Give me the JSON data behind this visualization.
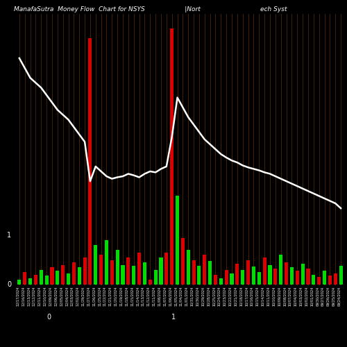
{
  "title": "ManafaSutra  Money Flow  Chart for NSYS                    |Nort                              ech Syst",
  "background_color": "#000000",
  "bar_color_positive": "#00dd00",
  "bar_color_negative": "#dd0000",
  "line_color": "#ffffff",
  "n_bars": 60,
  "bar_values": [
    0.1,
    0.25,
    0.12,
    0.2,
    0.3,
    0.18,
    0.35,
    0.28,
    0.4,
    0.22,
    0.45,
    0.35,
    0.55,
    5.0,
    0.8,
    0.6,
    0.9,
    0.5,
    0.7,
    0.4,
    0.55,
    0.38,
    0.65,
    0.45,
    0.1,
    0.3,
    0.55,
    0.65,
    5.2,
    1.8,
    0.95,
    0.7,
    0.5,
    0.38,
    0.6,
    0.48,
    0.2,
    0.12,
    0.3,
    0.22,
    0.42,
    0.3,
    0.5,
    0.36,
    0.25,
    0.55,
    0.4,
    0.32,
    0.6,
    0.45,
    0.35,
    0.28,
    0.42,
    0.32,
    0.2,
    0.15,
    0.28,
    0.18,
    0.22,
    0.38
  ],
  "bar_signs": [
    1,
    -1,
    1,
    -1,
    1,
    1,
    -1,
    1,
    -1,
    1,
    -1,
    1,
    -1,
    -1,
    1,
    -1,
    1,
    -1,
    1,
    1,
    -1,
    1,
    -1,
    1,
    -1,
    1,
    1,
    -1,
    -1,
    1,
    -1,
    1,
    -1,
    1,
    -1,
    1,
    -1,
    1,
    -1,
    1,
    -1,
    1,
    -1,
    1,
    1,
    -1,
    1,
    -1,
    1,
    -1,
    1,
    -1,
    1,
    -1,
    1,
    -1,
    1,
    -1,
    -1,
    1
  ],
  "line_values": [
    4.6,
    4.4,
    4.2,
    4.1,
    4.0,
    3.85,
    3.7,
    3.55,
    3.45,
    3.35,
    3.2,
    3.05,
    2.9,
    2.1,
    2.4,
    2.3,
    2.2,
    2.15,
    2.18,
    2.2,
    2.25,
    2.22,
    2.18,
    2.25,
    2.3,
    2.28,
    2.35,
    2.4,
    3.0,
    3.8,
    3.6,
    3.4,
    3.25,
    3.1,
    2.95,
    2.85,
    2.75,
    2.65,
    2.58,
    2.52,
    2.48,
    2.42,
    2.38,
    2.35,
    2.32,
    2.28,
    2.25,
    2.2,
    2.15,
    2.1,
    2.05,
    2.0,
    1.95,
    1.9,
    1.85,
    1.8,
    1.75,
    1.7,
    1.65,
    1.55
  ],
  "dates": [
    "12/17/2024",
    "12/16/2024",
    "12/13/2024",
    "12/12/2024",
    "12/11/2024",
    "12/10/2024",
    "12/09/2024",
    "12/06/2024",
    "12/05/2024",
    "12/04/2024",
    "12/03/2024",
    "12/02/2024",
    "11/29/2024",
    "11/27/2024",
    "11/26/2024",
    "11/25/2024",
    "11/22/2024",
    "11/21/2024",
    "11/20/2024",
    "11/19/2024",
    "11/18/2024",
    "11/15/2024",
    "11/14/2024",
    "11/13/2024",
    "11/12/2024",
    "11/11/2024",
    "11/08/2024",
    "11/07/2024",
    "11/06/2024",
    "11/05/2024",
    "11/04/2024",
    "11/01/2024",
    "10/31/2024",
    "10/30/2024",
    "10/29/2024",
    "10/28/2024",
    "10/25/2024",
    "10/24/2024",
    "10/23/2024",
    "10/22/2024",
    "10/21/2024",
    "10/18/2024",
    "10/17/2024",
    "10/16/2024",
    "10/15/2024",
    "10/14/2024",
    "10/11/2024",
    "10/10/2024",
    "10/09/2024",
    "10/08/2024",
    "10/07/2024",
    "10/04/2024",
    "10/03/2024",
    "10/02/2024",
    "10/01/2024",
    "09/30/2024",
    "09/27/2024",
    "09/26/2024",
    "09/25/2024",
    "09/24/2024"
  ],
  "ytick_0_label": "0",
  "ytick_0_pos": 0.0,
  "ytick_1_label": "1",
  "ytick_1_pos": 1.0,
  "ytick_0_xpos": 0.14,
  "ytick_1_xpos": 0.5,
  "ylim": [
    0,
    5.5
  ],
  "figsize": [
    5.0,
    5.0
  ],
  "dpi": 100
}
